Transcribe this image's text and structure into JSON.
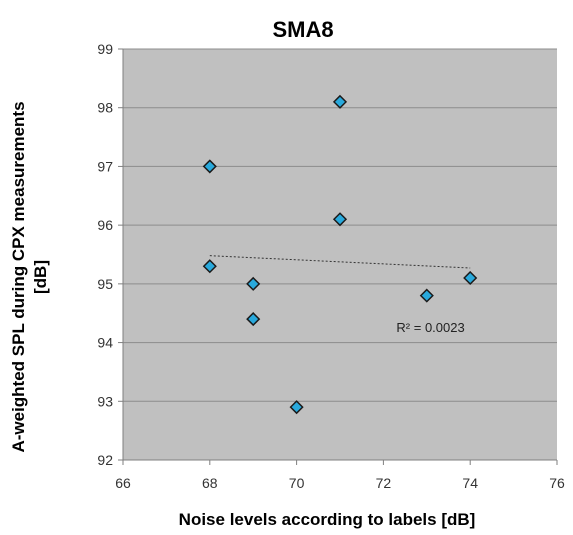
{
  "chart_data": {
    "type": "scatter",
    "title": "SMA8",
    "xlabel": "Noise levels according to labels [dB]",
    "ylabel_lines": [
      "A-weighted SPL during CPX   measurements",
      "[dB]"
    ],
    "xlim": [
      66,
      76
    ],
    "ylim": [
      92,
      99
    ],
    "xticks": [
      66,
      68,
      70,
      72,
      74,
      76
    ],
    "yticks": [
      92,
      93,
      94,
      95,
      96,
      97,
      98,
      99
    ],
    "grid": "horizontal",
    "plot_background": "#c0c0c0",
    "gridline_color": "#8c8c8c",
    "series": [
      {
        "marker": "diamond",
        "color": "#29a9dc",
        "edgecolor": "#1a1a1a",
        "points": [
          {
            "x": 68,
            "y": 97.0
          },
          {
            "x": 68,
            "y": 95.3
          },
          {
            "x": 69,
            "y": 95.0
          },
          {
            "x": 69,
            "y": 94.4
          },
          {
            "x": 70,
            "y": 92.9
          },
          {
            "x": 71,
            "y": 98.1
          },
          {
            "x": 71,
            "y": 96.1
          },
          {
            "x": 73,
            "y": 94.8
          },
          {
            "x": 74,
            "y": 95.1
          }
        ]
      }
    ],
    "trendline": {
      "type": "linear",
      "style": "dotted",
      "color": "#333333",
      "x_start": 68,
      "y_start": 95.48,
      "x_end": 74,
      "y_end": 95.27
    },
    "annotation": {
      "text": "R² = 0.0023",
      "x": 72.3,
      "y": 94.25
    }
  }
}
